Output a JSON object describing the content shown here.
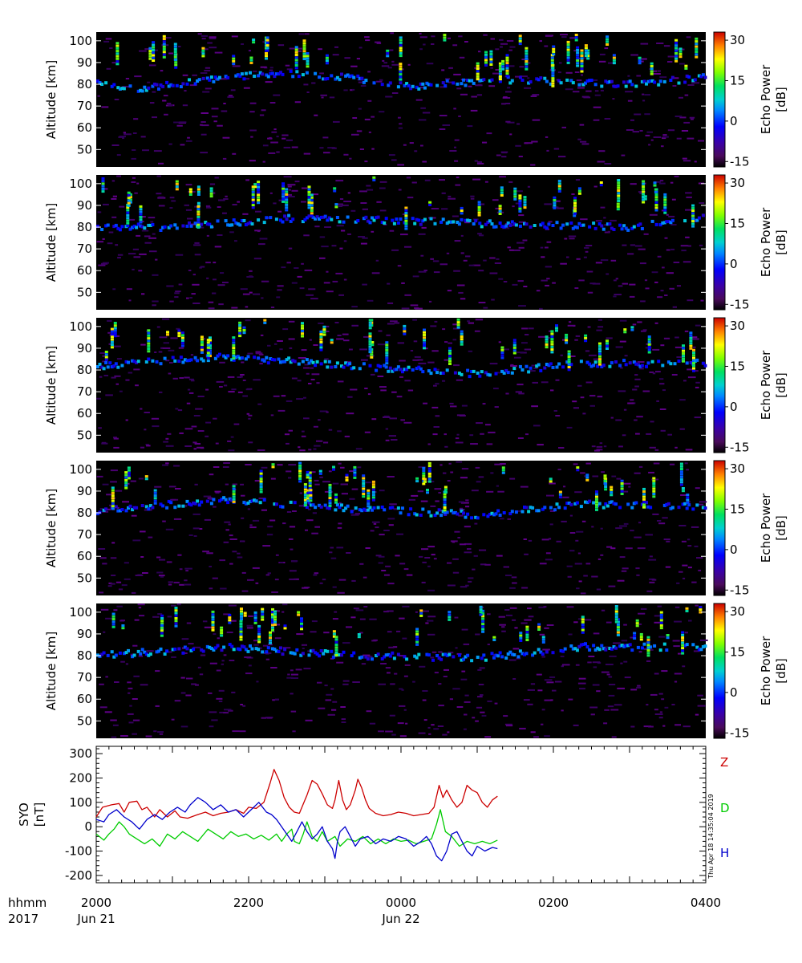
{
  "chart_data": [
    {
      "type": "heatmap",
      "panel": 1,
      "ylabel": "Altitude [km]",
      "y_ticks": [
        50,
        60,
        70,
        80,
        90,
        100
      ],
      "ylim": [
        42,
        104
      ],
      "xlim_minutes_after_2000": [
        0,
        480
      ],
      "colorbar": {
        "label_line1": "Echo Power",
        "label_line2": "[dB]",
        "ticks": [
          30,
          15,
          0,
          -15
        ],
        "range": [
          -17,
          33
        ]
      },
      "echo_layers": [
        {
          "t_minutes": 2,
          "altitude_km": 80
        },
        {
          "t_minutes": 30,
          "altitude_km": 78
        },
        {
          "t_minutes": 135,
          "altitude_km": 85
        },
        {
          "t_minutes": 200,
          "altitude_km": 83
        },
        {
          "t_minutes": 250,
          "altitude_km": 79
        },
        {
          "t_minutes": 320,
          "altitude_km": 82
        },
        {
          "t_minutes": 420,
          "altitude_km": 80
        },
        {
          "t_minutes": 478,
          "altitude_km": 83
        }
      ]
    },
    {
      "type": "heatmap",
      "panel": 2,
      "ylabel": "Altitude [km]",
      "y_ticks": [
        50,
        60,
        70,
        80,
        90,
        100
      ],
      "ylim": [
        42,
        104
      ],
      "xlim_minutes_after_2000": [
        0,
        480
      ],
      "colorbar": {
        "label_line1": "Echo Power",
        "label_line2": "[dB]",
        "ticks": [
          30,
          15,
          0,
          -15
        ],
        "range": [
          -17,
          33
        ]
      },
      "echo_layers": [
        {
          "t_minutes": 2,
          "altitude_km": 80
        },
        {
          "t_minutes": 60,
          "altitude_km": 80
        },
        {
          "t_minutes": 150,
          "altitude_km": 84
        },
        {
          "t_minutes": 240,
          "altitude_km": 83
        },
        {
          "t_minutes": 330,
          "altitude_km": 81
        },
        {
          "t_minutes": 420,
          "altitude_km": 80
        },
        {
          "t_minutes": 478,
          "altitude_km": 84
        }
      ]
    },
    {
      "type": "heatmap",
      "panel": 3,
      "ylabel": "Altitude [km]",
      "y_ticks": [
        50,
        60,
        70,
        80,
        90,
        100
      ],
      "ylim": [
        42,
        104
      ],
      "xlim_minutes_after_2000": [
        0,
        480
      ],
      "colorbar": {
        "label_line1": "Echo Power",
        "label_line2": "[dB]",
        "ticks": [
          30,
          15,
          0,
          -15
        ],
        "range": [
          -17,
          33
        ]
      },
      "echo_layers": [
        {
          "t_minutes": 2,
          "altitude_km": 82
        },
        {
          "t_minutes": 100,
          "altitude_km": 86
        },
        {
          "t_minutes": 200,
          "altitude_km": 82
        },
        {
          "t_minutes": 300,
          "altitude_km": 78
        },
        {
          "t_minutes": 380,
          "altitude_km": 83
        },
        {
          "t_minutes": 478,
          "altitude_km": 83
        }
      ]
    },
    {
      "type": "heatmap",
      "panel": 4,
      "ylabel": "Altitude [km]",
      "y_ticks": [
        50,
        60,
        70,
        80,
        90,
        100
      ],
      "ylim": [
        42,
        104
      ],
      "xlim_minutes_after_2000": [
        0,
        480
      ],
      "colorbar": {
        "label_line1": "Echo Power",
        "label_line2": "[dB]",
        "ticks": [
          30,
          15,
          0,
          -15
        ],
        "range": [
          -17,
          33
        ]
      },
      "echo_layers": [
        {
          "t_minutes": 2,
          "altitude_km": 81
        },
        {
          "t_minutes": 100,
          "altitude_km": 86
        },
        {
          "t_minutes": 200,
          "altitude_km": 82
        },
        {
          "t_minutes": 300,
          "altitude_km": 79
        },
        {
          "t_minutes": 380,
          "altitude_km": 84
        },
        {
          "t_minutes": 478,
          "altitude_km": 83
        }
      ]
    },
    {
      "type": "heatmap",
      "panel": 5,
      "ylabel": "Altitude [km]",
      "y_ticks": [
        50,
        60,
        70,
        80,
        90,
        100
      ],
      "ylim": [
        42,
        104
      ],
      "xlim_minutes_after_2000": [
        0,
        480
      ],
      "colorbar": {
        "label_line1": "Echo Power",
        "label_line2": "[dB]",
        "ticks": [
          30,
          15,
          0,
          -15
        ],
        "range": [
          -17,
          33
        ]
      },
      "echo_layers": [
        {
          "t_minutes": 2,
          "altitude_km": 80
        },
        {
          "t_minutes": 100,
          "altitude_km": 84
        },
        {
          "t_minutes": 200,
          "altitude_km": 80
        },
        {
          "t_minutes": 300,
          "altitude_km": 79
        },
        {
          "t_minutes": 380,
          "altitude_km": 84
        },
        {
          "t_minutes": 478,
          "altitude_km": 84
        }
      ]
    },
    {
      "type": "line",
      "panel": 6,
      "ylabel_line1": "SYO",
      "ylabel_line2": "[nT]",
      "y_ticks": [
        300,
        200,
        100,
        0,
        -100,
        -200
      ],
      "ylim": [
        -230,
        330
      ],
      "xlim_minutes_after_2000": [
        0,
        480
      ],
      "series": [
        {
          "name": "Z",
          "color": "#cc0000",
          "points": [
            [
              0,
              40
            ],
            [
              5,
              80
            ],
            [
              12,
              90
            ],
            [
              18,
              95
            ],
            [
              22,
              60
            ],
            [
              26,
              100
            ],
            [
              32,
              105
            ],
            [
              36,
              70
            ],
            [
              40,
              80
            ],
            [
              46,
              40
            ],
            [
              50,
              70
            ],
            [
              56,
              40
            ],
            [
              62,
              65
            ],
            [
              66,
              40
            ],
            [
              72,
              35
            ],
            [
              80,
              50
            ],
            [
              86,
              60
            ],
            [
              92,
              45
            ],
            [
              98,
              55
            ],
            [
              104,
              60
            ],
            [
              110,
              70
            ],
            [
              116,
              55
            ],
            [
              120,
              80
            ],
            [
              126,
              75
            ],
            [
              132,
              100
            ],
            [
              137,
              180
            ],
            [
              140,
              235
            ],
            [
              144,
              190
            ],
            [
              148,
              120
            ],
            [
              152,
              80
            ],
            [
              156,
              60
            ],
            [
              160,
              55
            ],
            [
              166,
              130
            ],
            [
              170,
              190
            ],
            [
              174,
              175
            ],
            [
              178,
              135
            ],
            [
              182,
              90
            ],
            [
              186,
              75
            ],
            [
              188,
              110
            ],
            [
              191,
              190
            ],
            [
              194,
              110
            ],
            [
              197,
              70
            ],
            [
              200,
              90
            ],
            [
              204,
              150
            ],
            [
              206,
              195
            ],
            [
              209,
              160
            ],
            [
              212,
              110
            ],
            [
              215,
              75
            ],
            [
              220,
              55
            ],
            [
              226,
              45
            ],
            [
              232,
              50
            ],
            [
              238,
              60
            ],
            [
              244,
              55
            ],
            [
              250,
              45
            ],
            [
              256,
              50
            ],
            [
              262,
              55
            ],
            [
              266,
              80
            ],
            [
              270,
              170
            ],
            [
              273,
              120
            ],
            [
              276,
              150
            ],
            [
              280,
              110
            ],
            [
              284,
              80
            ],
            [
              288,
              100
            ],
            [
              292,
              170
            ],
            [
              296,
              150
            ],
            [
              300,
              140
            ],
            [
              304,
              100
            ],
            [
              308,
              80
            ],
            [
              312,
              110
            ],
            [
              316,
              125
            ]
          ]
        },
        {
          "name": "D",
          "color": "#00cc00",
          "points": [
            [
              0,
              -30
            ],
            [
              6,
              -55
            ],
            [
              10,
              -30
            ],
            [
              14,
              -10
            ],
            [
              18,
              20
            ],
            [
              22,
              0
            ],
            [
              26,
              -30
            ],
            [
              32,
              -50
            ],
            [
              38,
              -70
            ],
            [
              44,
              -50
            ],
            [
              50,
              -80
            ],
            [
              56,
              -30
            ],
            [
              62,
              -50
            ],
            [
              68,
              -20
            ],
            [
              74,
              -40
            ],
            [
              80,
              -60
            ],
            [
              88,
              -10
            ],
            [
              94,
              -30
            ],
            [
              100,
              -50
            ],
            [
              106,
              -20
            ],
            [
              112,
              -40
            ],
            [
              118,
              -30
            ],
            [
              124,
              -50
            ],
            [
              130,
              -35
            ],
            [
              136,
              -55
            ],
            [
              142,
              -30
            ],
            [
              146,
              -60
            ],
            [
              150,
              -30
            ],
            [
              154,
              -10
            ],
            [
              156,
              -60
            ],
            [
              160,
              -70
            ],
            [
              163,
              -30
            ],
            [
              166,
              20
            ],
            [
              170,
              -40
            ],
            [
              174,
              -60
            ],
            [
              178,
              -20
            ],
            [
              182,
              -60
            ],
            [
              188,
              -40
            ],
            [
              192,
              -80
            ],
            [
              198,
              -50
            ],
            [
              204,
              -60
            ],
            [
              210,
              -40
            ],
            [
              216,
              -70
            ],
            [
              222,
              -50
            ],
            [
              228,
              -70
            ],
            [
              234,
              -50
            ],
            [
              240,
              -60
            ],
            [
              246,
              -55
            ],
            [
              252,
              -70
            ],
            [
              258,
              -60
            ],
            [
              264,
              -50
            ],
            [
              268,
              10
            ],
            [
              271,
              70
            ],
            [
              275,
              -20
            ],
            [
              280,
              -40
            ],
            [
              286,
              -80
            ],
            [
              292,
              -60
            ],
            [
              298,
              -70
            ],
            [
              304,
              -60
            ],
            [
              310,
              -70
            ],
            [
              316,
              -55
            ]
          ]
        },
        {
          "name": "H",
          "color": "#0000cc",
          "points": [
            [
              0,
              30
            ],
            [
              6,
              20
            ],
            [
              10,
              50
            ],
            [
              16,
              70
            ],
            [
              22,
              40
            ],
            [
              28,
              20
            ],
            [
              34,
              -10
            ],
            [
              40,
              30
            ],
            [
              46,
              50
            ],
            [
              52,
              30
            ],
            [
              58,
              60
            ],
            [
              64,
              80
            ],
            [
              70,
              60
            ],
            [
              74,
              90
            ],
            [
              80,
              120
            ],
            [
              86,
              100
            ],
            [
              92,
              70
            ],
            [
              98,
              90
            ],
            [
              104,
              60
            ],
            [
              110,
              70
            ],
            [
              116,
              40
            ],
            [
              122,
              70
            ],
            [
              128,
              100
            ],
            [
              134,
              60
            ],
            [
              138,
              50
            ],
            [
              142,
              30
            ],
            [
              146,
              0
            ],
            [
              150,
              -30
            ],
            [
              154,
              -60
            ],
            [
              158,
              -20
            ],
            [
              162,
              20
            ],
            [
              166,
              -20
            ],
            [
              170,
              -50
            ],
            [
              174,
              -30
            ],
            [
              178,
              0
            ],
            [
              182,
              -60
            ],
            [
              186,
              -90
            ],
            [
              188,
              -130
            ],
            [
              190,
              -60
            ],
            [
              192,
              -20
            ],
            [
              196,
              0
            ],
            [
              200,
              -40
            ],
            [
              204,
              -80
            ],
            [
              208,
              -50
            ],
            [
              214,
              -40
            ],
            [
              220,
              -70
            ],
            [
              226,
              -50
            ],
            [
              232,
              -60
            ],
            [
              238,
              -40
            ],
            [
              244,
              -50
            ],
            [
              250,
              -80
            ],
            [
              256,
              -60
            ],
            [
              260,
              -40
            ],
            [
              264,
              -70
            ],
            [
              268,
              -120
            ],
            [
              272,
              -140
            ],
            [
              276,
              -100
            ],
            [
              280,
              -30
            ],
            [
              284,
              -20
            ],
            [
              288,
              -60
            ],
            [
              292,
              -100
            ],
            [
              296,
              -120
            ],
            [
              300,
              -80
            ],
            [
              306,
              -100
            ],
            [
              312,
              -85
            ],
            [
              316,
              -90
            ]
          ]
        }
      ],
      "legend": [
        "Z",
        "D",
        "H"
      ],
      "timestamp": "Thu Apr 18 14:35:04 2019"
    }
  ],
  "xaxis": {
    "label_line1": "hhmm",
    "label_line2": "2017",
    "ticks": [
      {
        "minute": 0,
        "time": "2000",
        "date": "Jun 21"
      },
      {
        "minute": 120,
        "time": "2200",
        "date": ""
      },
      {
        "minute": 240,
        "time": "0000",
        "date": "Jun 22"
      },
      {
        "minute": 360,
        "time": "0200",
        "date": ""
      },
      {
        "minute": 480,
        "time": "0400",
        "date": ""
      }
    ]
  }
}
